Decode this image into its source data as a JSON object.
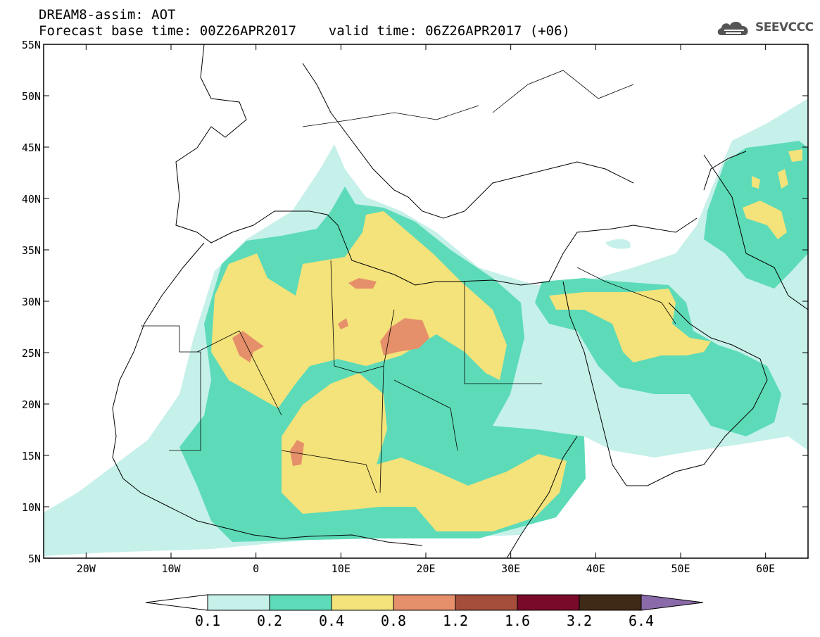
{
  "header": {
    "title_line1": "DREAM8-assim: AOT",
    "title_line2": "Forecast base time: 00Z26APR2017    valid time: 06Z26APR2017 (+06)",
    "brand": "SEEVCCC",
    "brand_icon": "cloud-logo-icon"
  },
  "map": {
    "lat_labels": [
      "55N",
      "50N",
      "45N",
      "40N",
      "35N",
      "30N",
      "25N",
      "20N",
      "15N",
      "10N",
      "5N"
    ],
    "lon_labels": [
      "20W",
      "10W",
      "0",
      "10E",
      "20E",
      "30E",
      "40E",
      "50E",
      "60E"
    ],
    "lat_range": [
      5,
      55
    ],
    "lon_range": [
      -25,
      65
    ],
    "field": "Aerosol optical thickness (dust)"
  },
  "colorbar": {
    "labels": [
      "0.1",
      "0.2",
      "0.4",
      "0.8",
      "1.2",
      "1.6",
      "3.2",
      "6.4"
    ],
    "colors": [
      "#ffffff",
      "#c6f0ea",
      "#5ddbb8",
      "#f4e27a",
      "#e5906a",
      "#a64e3c",
      "#7a0a2a",
      "#3f2a17",
      "#8a6aa8"
    ]
  }
}
